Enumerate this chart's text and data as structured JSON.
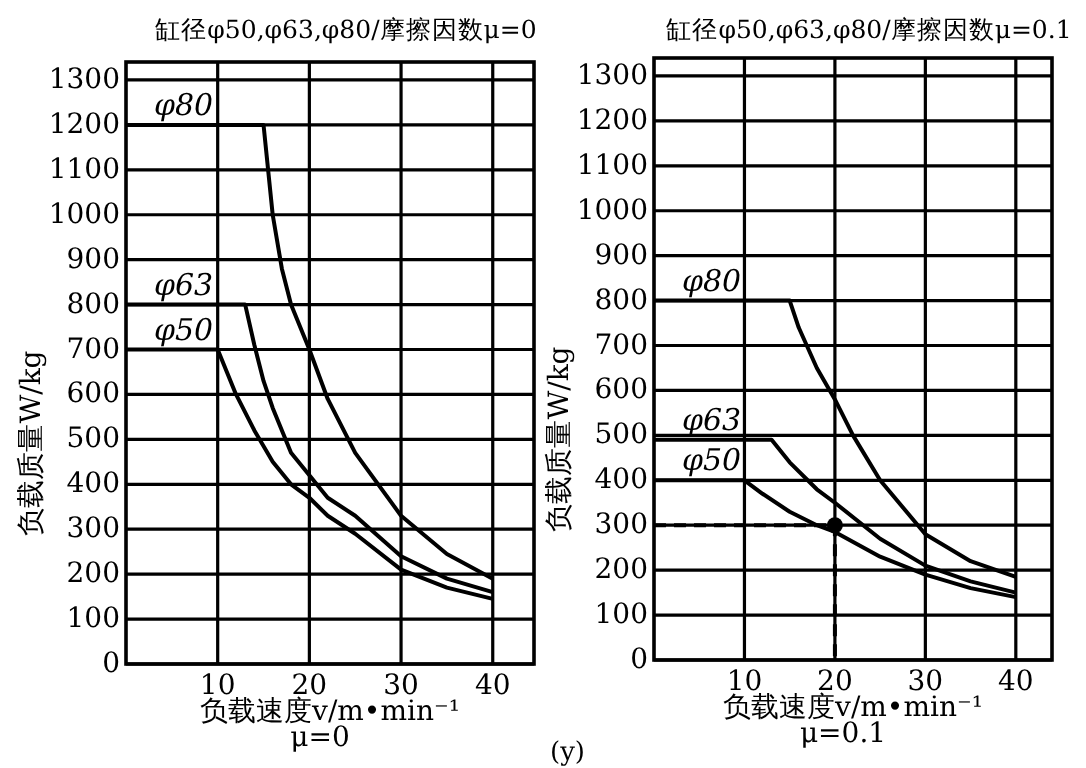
{
  "chart_data": [
    {
      "type": "line",
      "title": "缸径φ50,φ63,φ80/摩擦因数μ=0",
      "xlabel": "负载速度v/m•min⁻¹",
      "ylabel": "负载质量W/kg",
      "annotations": [
        "μ=0"
      ],
      "xlim": [
        0,
        44.5
      ],
      "ylim": [
        0,
        1340
      ],
      "xticks": [
        10,
        20,
        30,
        40
      ],
      "yticks": [
        0,
        100,
        200,
        300,
        400,
        500,
        600,
        700,
        800,
        900,
        1000,
        1100,
        1200,
        1300
      ],
      "grid": true,
      "series": [
        {
          "name": "φ80",
          "color": "#000000",
          "x": [
            0,
            15,
            16,
            17,
            18,
            20,
            22,
            25,
            30,
            35,
            40
          ],
          "values": [
            1200,
            1200,
            1000,
            880,
            800,
            700,
            590,
            470,
            330,
            245,
            190
          ]
        },
        {
          "name": "φ63",
          "color": "#000000",
          "x": [
            0,
            13,
            14,
            15,
            16,
            18,
            20,
            22,
            25,
            30,
            35,
            40
          ],
          "values": [
            800,
            800,
            710,
            630,
            570,
            470,
            420,
            370,
            330,
            240,
            190,
            160
          ]
        },
        {
          "name": "φ50",
          "color": "#000000",
          "x": [
            0,
            10,
            11,
            12,
            14,
            16,
            18,
            20,
            22,
            25,
            30,
            35,
            40
          ],
          "values": [
            700,
            700,
            650,
            600,
            520,
            450,
            400,
            370,
            330,
            290,
            210,
            170,
            145
          ]
        }
      ]
    },
    {
      "type": "line",
      "title": "缸径φ50,φ63,φ80/摩擦因数μ=0.1",
      "xlabel": "负载速度v/m•min⁻¹",
      "ylabel": "负载质量W/kg",
      "annotations": [
        "μ=0.1",
        "(y)"
      ],
      "xlim": [
        0,
        44
      ],
      "ylim": [
        0,
        1340
      ],
      "xticks": [
        10,
        20,
        30,
        40
      ],
      "yticks": [
        0,
        100,
        200,
        300,
        400,
        500,
        600,
        700,
        800,
        900,
        1000,
        1100,
        1200,
        1300
      ],
      "grid": true,
      "series": [
        {
          "name": "φ80",
          "color": "#000000",
          "x": [
            0,
            15,
            16,
            18,
            20,
            22,
            25,
            30,
            35,
            40
          ],
          "values": [
            800,
            800,
            740,
            650,
            580,
            500,
            400,
            280,
            220,
            185
          ]
        },
        {
          "name": "φ63",
          "color": "#000000",
          "x": [
            0,
            13,
            15,
            18,
            20,
            25,
            30,
            35,
            40
          ],
          "values": [
            490,
            490,
            440,
            380,
            350,
            270,
            210,
            175,
            150
          ]
        },
        {
          "name": "φ50",
          "color": "#000000",
          "x": [
            0,
            10,
            12,
            15,
            18,
            20,
            25,
            30,
            35,
            40
          ],
          "values": [
            400,
            400,
            370,
            330,
            300,
            285,
            230,
            190,
            160,
            140
          ]
        },
        {
          "color": "#000000",
          "line_style": "dashed",
          "x": [
            0,
            20,
            20
          ],
          "values": [
            300,
            300,
            0
          ]
        },
        {
          "type": "scatter",
          "marker": "circle",
          "color": "#000000",
          "x": [
            20
          ],
          "values": [
            300
          ]
        }
      ]
    }
  ]
}
